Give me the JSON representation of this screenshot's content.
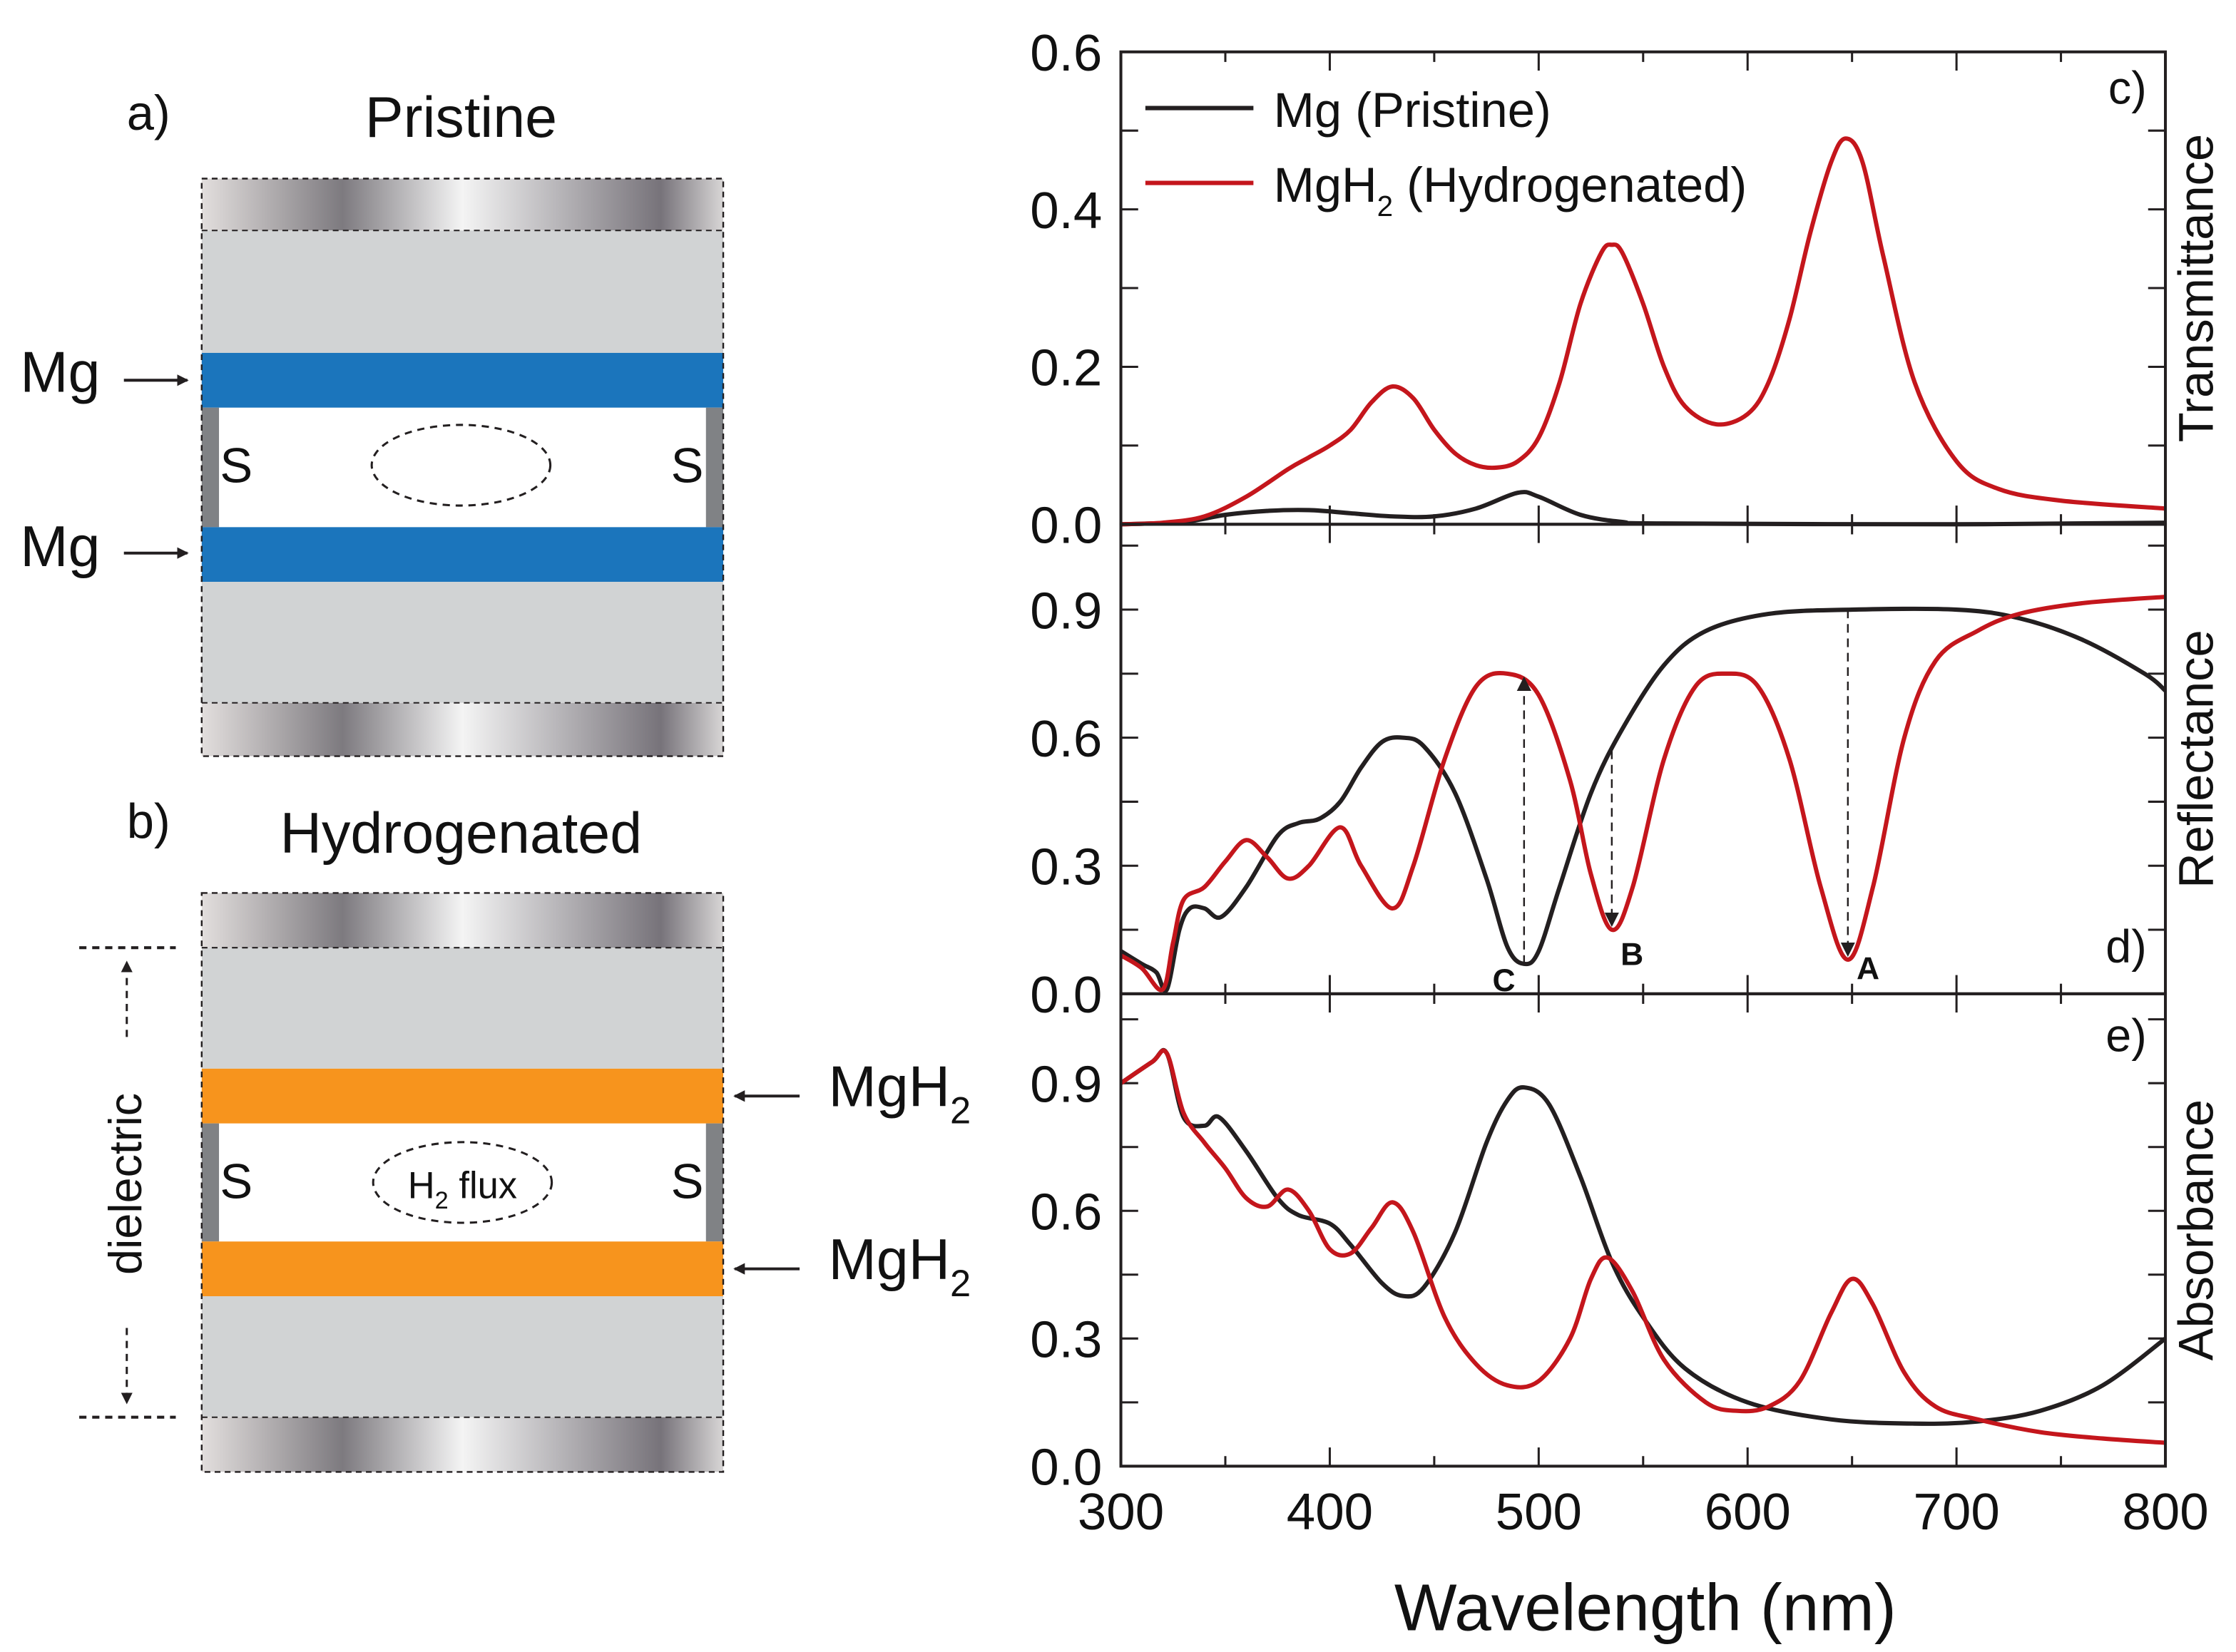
{
  "diagram": {
    "a_label": "a)",
    "a_title": "Pristine",
    "b_label": "b)",
    "b_title": "Hydrogenated",
    "mg_label": "Mg",
    "mgh2_main": "MgH",
    "mgh2_sub": "2",
    "spacer_label": "S",
    "flux_main": "H",
    "flux_sub": "2",
    "flux_rest": " flux",
    "dielectric_label": "dielectric",
    "colors": {
      "mg": "#1b75bc",
      "mgh2": "#f7941d",
      "dielectric": "#d1d3d4",
      "spacer": "#808285"
    }
  },
  "chart_data": {
    "type": "line",
    "xlabel": "Wavelength (nm)",
    "xlim": [
      300,
      800
    ],
    "xticks": [
      "300",
      "400",
      "500",
      "600",
      "700",
      "800"
    ],
    "legend": {
      "placement": "top-left",
      "entries": [
        {
          "main": "Mg (Pristine)",
          "sub": "",
          "rest": "",
          "color": "#231f20"
        },
        {
          "main": "MgH",
          "sub": "2",
          "rest": " (Hydrogenated)",
          "color": "#c4161c"
        }
      ]
    },
    "panels": [
      {
        "label": "c)",
        "ylabel": "Transmittance",
        "ylim": [
          0,
          0.6
        ],
        "yticks": [
          "0.0",
          "0.2",
          "0.4",
          "0.6"
        ],
        "yminor_step": 0.1,
        "series": [
          {
            "name": "Mg (Pristine)",
            "color": "#231f20",
            "points": [
              [
                300,
                0
              ],
              [
                330,
                0.003
              ],
              [
                350,
                0.012
              ],
              [
                370,
                0.017
              ],
              [
                390,
                0.018
              ],
              [
                410,
                0.014
              ],
              [
                430,
                0.01
              ],
              [
                450,
                0.01
              ],
              [
                470,
                0.02
              ],
              [
                490,
                0.04
              ],
              [
                500,
                0.035
              ],
              [
                520,
                0.012
              ],
              [
                540,
                0.003
              ],
              [
                560,
                0.001
              ],
              [
                700,
                0.0
              ],
              [
                800,
                0.002
              ]
            ]
          },
          {
            "name": "MgH2 (Hydrogenated)",
            "color": "#c4161c",
            "points": [
              [
                300,
                0
              ],
              [
                320,
                0.002
              ],
              [
                340,
                0.01
              ],
              [
                360,
                0.035
              ],
              [
                380,
                0.07
              ],
              [
                390,
                0.085
              ],
              [
                400,
                0.1
              ],
              [
                410,
                0.12
              ],
              [
                420,
                0.155
              ],
              [
                430,
                0.175
              ],
              [
                440,
                0.16
              ],
              [
                450,
                0.12
              ],
              [
                460,
                0.09
              ],
              [
                470,
                0.075
              ],
              [
                480,
                0.072
              ],
              [
                490,
                0.08
              ],
              [
                500,
                0.11
              ],
              [
                510,
                0.18
              ],
              [
                520,
                0.28
              ],
              [
                530,
                0.345
              ],
              [
                535,
                0.355
              ],
              [
                540,
                0.345
              ],
              [
                550,
                0.28
              ],
              [
                560,
                0.2
              ],
              [
                570,
                0.15
              ],
              [
                585,
                0.127
              ],
              [
                600,
                0.14
              ],
              [
                610,
                0.18
              ],
              [
                620,
                0.26
              ],
              [
                630,
                0.37
              ],
              [
                640,
                0.46
              ],
              [
                647,
                0.49
              ],
              [
                655,
                0.46
              ],
              [
                665,
                0.34
              ],
              [
                680,
                0.18
              ],
              [
                700,
                0.08
              ],
              [
                720,
                0.045
              ],
              [
                750,
                0.03
              ],
              [
                800,
                0.02
              ]
            ]
          }
        ]
      },
      {
        "label": "d)",
        "ylabel": "Reflectance",
        "ylim": [
          0,
          1.1
        ],
        "yticks": [
          "0.0",
          "0.3",
          "0.6",
          "0.9"
        ],
        "yminor_step": 0.15,
        "series": [
          {
            "name": "Mg (Pristine)",
            "color": "#231f20",
            "points": [
              [
                300,
                0.1
              ],
              [
                310,
                0.07
              ],
              [
                317,
                0.05
              ],
              [
                322,
                0.01
              ],
              [
                328,
                0.15
              ],
              [
                333,
                0.2
              ],
              [
                340,
                0.2
              ],
              [
                348,
                0.18
              ],
              [
                360,
                0.25
              ],
              [
                375,
                0.37
              ],
              [
                385,
                0.4
              ],
              [
                395,
                0.41
              ],
              [
                405,
                0.45
              ],
              [
                415,
                0.53
              ],
              [
                425,
                0.59
              ],
              [
                435,
                0.6
              ],
              [
                445,
                0.58
              ],
              [
                460,
                0.47
              ],
              [
                475,
                0.27
              ],
              [
                485,
                0.11
              ],
              [
                493,
                0.07
              ],
              [
                500,
                0.1
              ],
              [
                510,
                0.25
              ],
              [
                525,
                0.47
              ],
              [
                540,
                0.62
              ],
              [
                560,
                0.77
              ],
              [
                580,
                0.85
              ],
              [
                610,
                0.89
              ],
              [
                650,
                0.9
              ],
              [
                700,
                0.9
              ],
              [
                730,
                0.88
              ],
              [
                760,
                0.83
              ],
              [
                790,
                0.75
              ],
              [
                800,
                0.71
              ]
            ]
          },
          {
            "name": "MgH2 (Hydrogenated)",
            "color": "#c4161c",
            "points": [
              [
                300,
                0.09
              ],
              [
                310,
                0.06
              ],
              [
                320,
                0.01
              ],
              [
                325,
                0.12
              ],
              [
                330,
                0.22
              ],
              [
                340,
                0.25
              ],
              [
                350,
                0.31
              ],
              [
                360,
                0.36
              ],
              [
                370,
                0.32
              ],
              [
                380,
                0.27
              ],
              [
                390,
                0.3
              ],
              [
                405,
                0.39
              ],
              [
                415,
                0.3
              ],
              [
                430,
                0.2
              ],
              [
                440,
                0.3
              ],
              [
                455,
                0.55
              ],
              [
                470,
                0.72
              ],
              [
                485,
                0.75
              ],
              [
                500,
                0.7
              ],
              [
                515,
                0.5
              ],
              [
                525,
                0.28
              ],
              [
                535,
                0.15
              ],
              [
                545,
                0.25
              ],
              [
                560,
                0.55
              ],
              [
                575,
                0.72
              ],
              [
                590,
                0.75
              ],
              [
                605,
                0.72
              ],
              [
                620,
                0.55
              ],
              [
                635,
                0.25
              ],
              [
                648,
                0.08
              ],
              [
                660,
                0.25
              ],
              [
                675,
                0.6
              ],
              [
                690,
                0.78
              ],
              [
                710,
                0.85
              ],
              [
                730,
                0.89
              ],
              [
                760,
                0.915
              ],
              [
                800,
                0.93
              ]
            ]
          }
        ],
        "annotations": [
          {
            "label": "C",
            "x": 493,
            "from": 0.07,
            "to": 0.74
          },
          {
            "label": "B",
            "x": 535,
            "from": 0.57,
            "to": 0.16
          },
          {
            "label": "A",
            "x": 648,
            "from": 0.9,
            "to": 0.09
          }
        ]
      },
      {
        "label": "e)",
        "ylabel": "Absorbance",
        "ylim": [
          0,
          1.11
        ],
        "yticks": [
          "0.0",
          "0.3",
          "0.6",
          "0.9"
        ],
        "yminor_step": 0.15,
        "series": [
          {
            "name": "Mg (Pristine)",
            "color": "#231f20",
            "points": [
              [
                300,
                0.9
              ],
              [
                315,
                0.95
              ],
              [
                322,
                0.97
              ],
              [
                330,
                0.82
              ],
              [
                340,
                0.8
              ],
              [
                347,
                0.82
              ],
              [
                360,
                0.74
              ],
              [
                375,
                0.63
              ],
              [
                385,
                0.59
              ],
              [
                400,
                0.57
              ],
              [
                410,
                0.52
              ],
              [
                425,
                0.43
              ],
              [
                435,
                0.4
              ],
              [
                445,
                0.42
              ],
              [
                460,
                0.55
              ],
              [
                475,
                0.76
              ],
              [
                485,
                0.86
              ],
              [
                493,
                0.89
              ],
              [
                505,
                0.85
              ],
              [
                520,
                0.68
              ],
              [
                535,
                0.48
              ],
              [
                550,
                0.35
              ],
              [
                570,
                0.23
              ],
              [
                600,
                0.15
              ],
              [
                640,
                0.11
              ],
              [
                680,
                0.1
              ],
              [
                710,
                0.105
              ],
              [
                740,
                0.13
              ],
              [
                770,
                0.19
              ],
              [
                800,
                0.3
              ]
            ]
          },
          {
            "name": "MgH2 (Hydrogenated)",
            "color": "#c4161c",
            "points": [
              [
                300,
                0.9
              ],
              [
                315,
                0.95
              ],
              [
                322,
                0.97
              ],
              [
                330,
                0.83
              ],
              [
                340,
                0.76
              ],
              [
                350,
                0.7
              ],
              [
                360,
                0.63
              ],
              [
                370,
                0.61
              ],
              [
                380,
                0.65
              ],
              [
                390,
                0.6
              ],
              [
                400,
                0.51
              ],
              [
                410,
                0.5
              ],
              [
                420,
                0.56
              ],
              [
                430,
                0.62
              ],
              [
                440,
                0.55
              ],
              [
                455,
                0.35
              ],
              [
                470,
                0.24
              ],
              [
                485,
                0.19
              ],
              [
                500,
                0.2
              ],
              [
                515,
                0.3
              ],
              [
                525,
                0.44
              ],
              [
                533,
                0.49
              ],
              [
                545,
                0.41
              ],
              [
                560,
                0.25
              ],
              [
                580,
                0.15
              ],
              [
                595,
                0.13
              ],
              [
                610,
                0.14
              ],
              [
                625,
                0.2
              ],
              [
                640,
                0.36
              ],
              [
                650,
                0.44
              ],
              [
                660,
                0.38
              ],
              [
                675,
                0.22
              ],
              [
                690,
                0.14
              ],
              [
                710,
                0.11
              ],
              [
                740,
                0.08
              ],
              [
                770,
                0.065
              ],
              [
                800,
                0.055
              ]
            ]
          }
        ]
      }
    ]
  }
}
